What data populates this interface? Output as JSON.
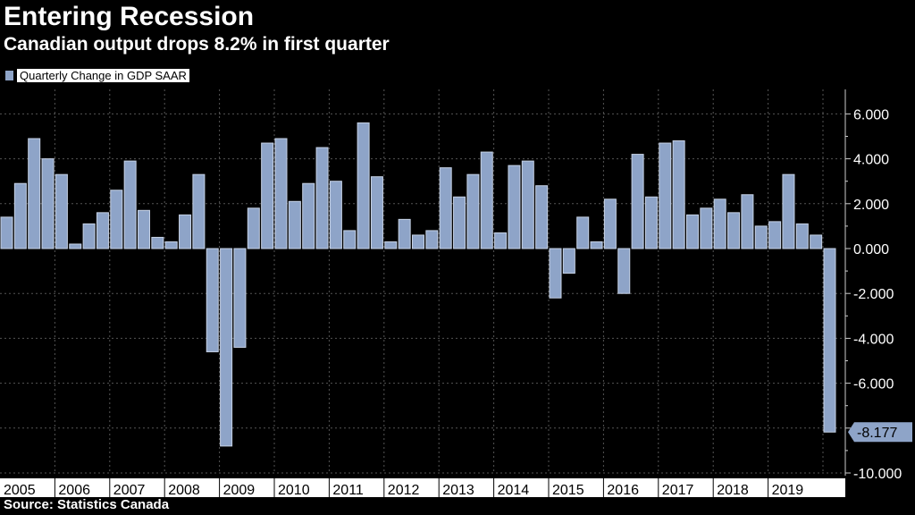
{
  "chart_data": {
    "type": "bar",
    "title": "Entering Recession",
    "subtitle": "Canadian output drops 8.2% in first quarter",
    "legend": [
      "Quarterly Change in GDP SAAR"
    ],
    "source": "Source: Statistics Canada",
    "last_value_label": "-8.177",
    "colors": {
      "bar": "#8ea4c8",
      "bar_edge": "#c5d1e4",
      "background": "#000000",
      "grid": "#555555"
    },
    "ylim": [
      -10,
      7
    ],
    "yticks": [
      6,
      4,
      2,
      0,
      -2,
      -4,
      -6,
      -8,
      -10
    ],
    "ytick_labels": [
      "6.000",
      "4.000",
      "2.000",
      "0.000",
      "-2.000",
      "-4.000",
      "-6.000",
      "-8.000",
      "-10.000"
    ],
    "x_labels": [
      "2005",
      "2006",
      "2007",
      "2008",
      "2009",
      "2010",
      "2011",
      "2012",
      "2013",
      "2014",
      "2015",
      "2016",
      "2017",
      "2018",
      "2019"
    ],
    "values": [
      1.4,
      2.9,
      4.9,
      4.0,
      3.3,
      0.2,
      1.1,
      1.6,
      2.6,
      3.9,
      1.7,
      0.5,
      0.3,
      1.5,
      3.3,
      -4.6,
      -8.8,
      -4.4,
      1.8,
      4.7,
      4.9,
      2.1,
      2.9,
      4.5,
      3.0,
      0.8,
      5.6,
      3.2,
      0.3,
      1.3,
      0.6,
      0.8,
      3.6,
      2.3,
      3.3,
      4.3,
      0.7,
      3.7,
      3.9,
      2.8,
      -2.2,
      -1.1,
      1.4,
      0.3,
      2.2,
      -2.0,
      4.2,
      2.3,
      4.7,
      4.8,
      1.5,
      1.8,
      2.2,
      1.6,
      2.4,
      1.0,
      1.2,
      3.3,
      1.1,
      0.6,
      -8.177
    ]
  }
}
